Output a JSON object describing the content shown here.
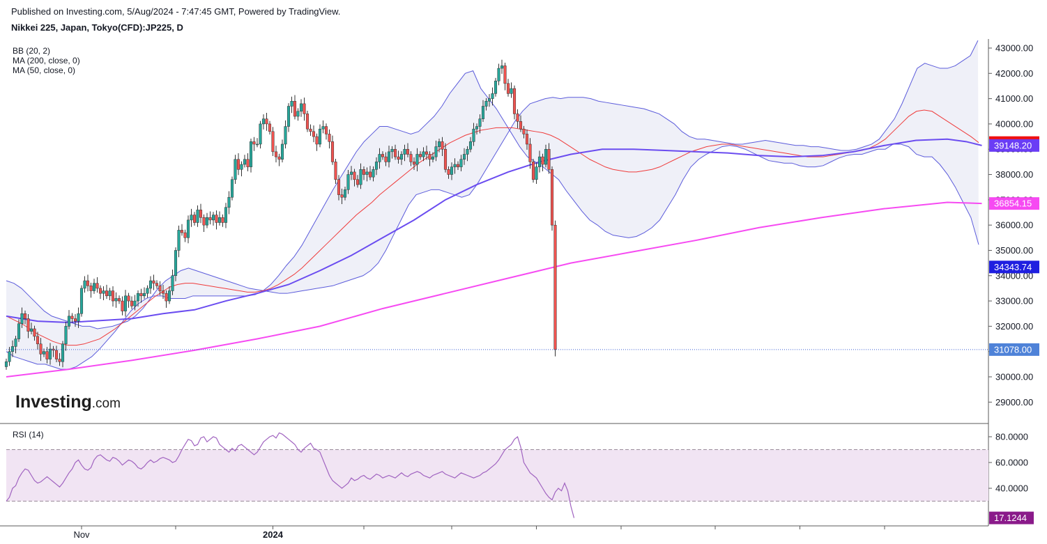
{
  "header": {
    "published": "Published on Investing.com, 5/Aug/2024 - 7:47:45 GMT, Powered by TradingView.",
    "symbol": "Nikkei 225, Japan, Tokyo(CFD):JP225, D"
  },
  "indicators": {
    "bb": "BB (20, 2)",
    "ma200": "MA (200, close, 0)",
    "ma50": "MA (50, close, 0)",
    "rsi": "RSI (14)"
  },
  "logo": {
    "main": "Investing",
    "suffix": ".com"
  },
  "colors": {
    "up": "#26a69a",
    "down": "#ef5350",
    "bb_band": "#5b5bdb",
    "bb_mid": "#ef3b3b",
    "ma50": "#6a4cf0",
    "ma200": "#f64af2",
    "rsi_line": "#a063c0",
    "rsi_fill": "#f1e4f3",
    "tag_bb_mid": "#f01010",
    "tag_ma50": "#6a3df5",
    "tag_ma200": "#f64af2",
    "tag_bb_low": "#1f1fe0",
    "tag_last": "#4e82d8",
    "tag_rsi": "#8a1a8a"
  },
  "chart_data": [
    {
      "type": "candlestick",
      "title": "Nikkei 225, Japan, Tokyo(CFD):JP225, D",
      "ylim": [
        28000,
        43600
      ],
      "y_ticks": [
        29000,
        30000,
        31000,
        32000,
        33000,
        34000,
        35000,
        36000,
        37000,
        38000,
        39000,
        40000,
        41000,
        42000,
        43000
      ],
      "y_tick_labels": [
        "29000.00",
        "30000.00",
        "31000.00",
        "32000.00",
        "33000.00",
        "34000.00",
        "35000.00",
        "36000.00",
        "37000.00",
        "38000.00",
        "39000.00",
        "40000.00",
        "41000.00",
        "42000.00",
        "43000.00"
      ],
      "x_labels": [
        {
          "index": 24,
          "label": "Nov"
        },
        {
          "index": 85,
          "label": "2024"
        }
      ],
      "x_tick_indices": [
        24,
        54,
        85,
        114,
        142,
        169,
        196,
        226,
        253,
        280
      ],
      "last_values": [
        {
          "name": "BB basis",
          "value": "39263.30",
          "y": 39263.3
        },
        {
          "name": "MA 50",
          "value": "39148.20",
          "y": 39148.2
        },
        {
          "name": "MA 200",
          "value": "36854.15",
          "y": 36854.15
        },
        {
          "name": "BB lower",
          "value": "34343.74",
          "y": 34343.74
        },
        {
          "name": "Close",
          "value": "31078.00",
          "y": 31078.0
        }
      ],
      "close": [
        30600,
        31000,
        31200,
        31500,
        32100,
        32500,
        32300,
        31800,
        31900,
        31600,
        31300,
        30900,
        31000,
        30700,
        31100,
        31050,
        30700,
        30600,
        31300,
        32000,
        32400,
        32300,
        32200,
        32500,
        33500,
        33800,
        33600,
        33400,
        33700,
        33500,
        33300,
        33400,
        33200,
        33400,
        33000,
        33100,
        33000,
        32600,
        33200,
        33000,
        32800,
        33000,
        33300,
        33200,
        33300,
        33500,
        33800,
        33700,
        33600,
        33400,
        33300,
        33000,
        33400,
        34000,
        35000,
        35800,
        35700,
        35500,
        36200,
        36400,
        36100,
        36600,
        36300,
        36000,
        36300,
        36200,
        36400,
        36100,
        36300,
        36100,
        36700,
        37100,
        37800,
        38600,
        38200,
        38400,
        38600,
        38300,
        39300,
        39200,
        39200,
        40000,
        40200,
        40000,
        39700,
        38900,
        38700,
        38600,
        39200,
        39900,
        40700,
        40900,
        40300,
        40500,
        40800,
        40400,
        39800,
        39700,
        39500,
        39200,
        39800,
        39900,
        39600,
        39300,
        38500,
        37800,
        37200,
        37100,
        37400,
        38000,
        38100,
        37800,
        37600,
        38200,
        38000,
        38100,
        37900,
        38200,
        38500,
        38800,
        38700,
        38500,
        38900,
        39000,
        38700,
        38600,
        38800,
        39000,
        38800,
        38500,
        38400,
        38800,
        38700,
        38900,
        38800,
        38600,
        38700,
        39100,
        39300,
        39000,
        38200,
        38000,
        38300,
        38400,
        38300,
        38600,
        38800,
        39000,
        39300,
        39800,
        39900,
        40200,
        40700,
        40900,
        41000,
        41200,
        41700,
        42200,
        42300,
        41600,
        41200,
        41400,
        40400,
        40100,
        39800,
        39600,
        39200,
        38500,
        37800,
        38300,
        38700,
        38400,
        39000,
        38200,
        36000,
        31078
      ],
      "bb_upper": [
        33800,
        33700,
        33500,
        33200,
        32900,
        32600,
        32400,
        32300,
        32200,
        32100,
        32000,
        32000,
        31900,
        31950,
        32000,
        32100,
        32200,
        32400,
        32700,
        33100,
        33500,
        33800,
        34000,
        34200,
        34300,
        34200,
        34100,
        34000,
        33900,
        33800,
        33700,
        33600,
        33500,
        33450,
        33400,
        33350,
        33300,
        33300,
        33350,
        33400,
        33450,
        33500,
        33550,
        33600,
        33700,
        33800,
        33900,
        34000,
        34200,
        34500,
        35000,
        35600,
        36200,
        36800,
        37200,
        37300,
        37400,
        37400,
        37300,
        37200,
        37100,
        37200,
        37600,
        38100,
        38600,
        39100,
        39600,
        40100,
        40500,
        40800,
        40900,
        41000,
        41050,
        41000,
        41050,
        41050,
        41050,
        41000,
        40900,
        40850,
        40800,
        40750,
        40700,
        40650,
        40600,
        40500,
        40400,
        40200,
        40000,
        39700,
        39500,
        39400,
        39400,
        39350,
        39300,
        39250,
        39200,
        39200,
        39250,
        39300,
        39350,
        39300,
        39250,
        39200,
        39150,
        39150,
        39100,
        39100,
        39050,
        39000,
        38950,
        38950,
        39000,
        39100,
        39200,
        39400,
        39800,
        40200,
        40800,
        41500,
        42200,
        42400,
        42300,
        42200,
        42200,
        42300,
        42500,
        42700,
        43300
      ],
      "bb_lower_tail": [
        32600,
        32400,
        31800,
        31300,
        30700,
        30500,
        30200,
        30000,
        29900,
        30000,
        30200,
        30500,
        30900,
        31100,
        31100,
        31300,
        31700,
        32100,
        32700,
        33200,
        33700,
        34200,
        34600,
        35000,
        35300,
        35400,
        35300,
        35200,
        35100,
        35100,
        35100,
        35200,
        35400,
        35700,
        36000,
        36400,
        36800,
        37300,
        37500,
        37600,
        37700,
        37800,
        37800,
        37800,
        37750,
        37700,
        37600,
        37500,
        37500,
        37500,
        37600,
        37700,
        37750,
        37800,
        37900,
        38000,
        38100,
        38100,
        38100,
        38100,
        38100,
        38100,
        38100,
        38000,
        37950,
        37900,
        37800,
        37700,
        37600,
        37500,
        37400,
        37400,
        37500,
        37700,
        38000,
        38300,
        38600,
        38700,
        38500,
        38000,
        37900,
        37600,
        37400,
        36700,
        34344
      ],
      "bb_mid": [
        32400,
        32250,
        32100,
        31900,
        31700,
        31550,
        31400,
        31300,
        31250,
        31250,
        31300,
        31400,
        31500,
        31700,
        31900,
        32150,
        32400,
        32650,
        32900,
        33150,
        33350,
        33550,
        33650,
        33700,
        33700,
        33650,
        33600,
        33550,
        33500,
        33450,
        33400,
        33350,
        33350,
        33400,
        33500,
        33650,
        33850,
        34050,
        34300,
        34600,
        34900,
        35200,
        35500,
        35800,
        36100,
        36400,
        36650,
        36900,
        37200,
        37450,
        37700,
        37950,
        38200,
        38450,
        38650,
        38850,
        39050,
        39250,
        39400,
        39550,
        39650,
        39750,
        39800,
        39850,
        39850,
        39850,
        39800,
        39750,
        39700,
        39650,
        39550,
        39400,
        39200,
        39000,
        38800,
        38600,
        38450,
        38300,
        38200,
        38150,
        38100,
        38100,
        38150,
        38200,
        38300,
        38450,
        38600,
        38750,
        38900,
        39000,
        39100,
        39150,
        39200,
        39200,
        39150,
        39100,
        39050,
        39000,
        38950,
        38900,
        38850,
        38800,
        38750,
        38700,
        38700,
        38700,
        38750,
        38800,
        38850,
        38900,
        38950,
        39050,
        39200,
        39400,
        39700,
        40000,
        40300,
        40500,
        40550,
        40500,
        40300,
        40100,
        39900,
        39700,
        39500,
        39263
      ],
      "ma50_pts": [
        [
          0,
          32400
        ],
        [
          10,
          32200
        ],
        [
          20,
          32150
        ],
        [
          40,
          32300
        ],
        [
          50,
          32500
        ],
        [
          60,
          32650
        ],
        [
          70,
          33000
        ],
        [
          80,
          33300
        ],
        [
          90,
          33650
        ],
        [
          100,
          34200
        ],
        [
          110,
          34800
        ],
        [
          120,
          35500
        ],
        [
          130,
          36200
        ],
        [
          140,
          37000
        ],
        [
          150,
          37600
        ],
        [
          160,
          38100
        ],
        [
          170,
          38500
        ],
        [
          180,
          38800
        ],
        [
          190,
          39000
        ],
        [
          200,
          39000
        ],
        [
          210,
          38950
        ],
        [
          220,
          38900
        ],
        [
          230,
          38850
        ],
        [
          240,
          38750
        ],
        [
          250,
          38700
        ],
        [
          260,
          38750
        ],
        [
          270,
          38900
        ],
        [
          280,
          39150
        ],
        [
          290,
          39350
        ],
        [
          300,
          39400
        ],
        [
          306,
          39300
        ],
        [
          311,
          39148
        ]
      ],
      "ma200_pts": [
        [
          0,
          30000
        ],
        [
          20,
          30300
        ],
        [
          40,
          30650
        ],
        [
          60,
          31050
        ],
        [
          80,
          31500
        ],
        [
          100,
          32000
        ],
        [
          120,
          32700
        ],
        [
          140,
          33300
        ],
        [
          160,
          33900
        ],
        [
          180,
          34500
        ],
        [
          200,
          34950
        ],
        [
          220,
          35400
        ],
        [
          240,
          35900
        ],
        [
          260,
          36300
        ],
        [
          280,
          36650
        ],
        [
          300,
          36900
        ],
        [
          311,
          36854
        ]
      ]
    },
    {
      "type": "line",
      "title": "RSI (14)",
      "ylim": [
        10,
        86
      ],
      "y_ticks": [
        40,
        60,
        80
      ],
      "y_tick_labels": [
        "40.0000",
        "60.0000",
        "80.0000"
      ],
      "bands": [
        30,
        70
      ],
      "last_value": "17.1244",
      "values": [
        30,
        33,
        40,
        42,
        48,
        52,
        55,
        54,
        50,
        46,
        44,
        45,
        47,
        49,
        47,
        45,
        43,
        41,
        44,
        48,
        52,
        55,
        60,
        62,
        58,
        55,
        54,
        56,
        62,
        65,
        66,
        64,
        62,
        61,
        64,
        63,
        61,
        58,
        60,
        62,
        61,
        59,
        56,
        55,
        57,
        60,
        62,
        60,
        61,
        63,
        64,
        63,
        62,
        60,
        61,
        65,
        70,
        74,
        78,
        77,
        73,
        74,
        79,
        80,
        76,
        78,
        80,
        79,
        74,
        72,
        70,
        68,
        71,
        69,
        73,
        74,
        72,
        70,
        68,
        66,
        68,
        72,
        76,
        78,
        80,
        81,
        79,
        83,
        82,
        80,
        78,
        76,
        74,
        70,
        68,
        71,
        73,
        75,
        71,
        70,
        68,
        62,
        56,
        50,
        46,
        44,
        42,
        40,
        42,
        44,
        48,
        46,
        47,
        49,
        50,
        48,
        47,
        49,
        51,
        50,
        48,
        49,
        50,
        49,
        48,
        50,
        52,
        50,
        49,
        51,
        52,
        53,
        52,
        50,
        49,
        48,
        50,
        51,
        52,
        53,
        51,
        50,
        49,
        48,
        50,
        52,
        51,
        50,
        49,
        48,
        49,
        50,
        52,
        53,
        55,
        57,
        59,
        62,
        66,
        70,
        72,
        74,
        78,
        80,
        72,
        60,
        56,
        52,
        50,
        48,
        44,
        40,
        36,
        33,
        31,
        37,
        40,
        38,
        44,
        38,
        26,
        17
      ]
    }
  ]
}
